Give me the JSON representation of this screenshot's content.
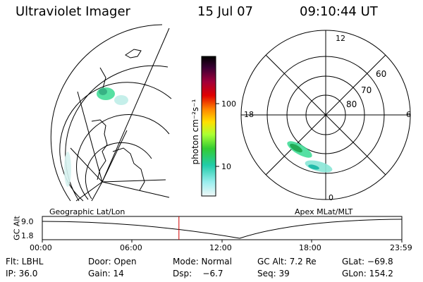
{
  "header": {
    "title": "Ultraviolet Imager",
    "date": "15 Jul 07",
    "time": "09:10:44 UT"
  },
  "colorbar": {
    "unit_label": "photon cm⁻²s⁻¹",
    "ticks": [
      "100",
      "10"
    ],
    "colors": [
      "#000000",
      "#3a0033",
      "#7a0040",
      "#b80020",
      "#e00000",
      "#ff5500",
      "#ff9900",
      "#ffdd00",
      "#e6ff33",
      "#99ff33",
      "#44dd33",
      "#22cc99",
      "#33ddcc",
      "#88eeee",
      "#d0f0f0",
      "#ffffff"
    ]
  },
  "left_map": {
    "label": "Geographic Lat/Lon"
  },
  "right_map": {
    "label": "Apex MLat/MLT",
    "lat_labels": [
      "60",
      "70",
      "80"
    ],
    "mlt_labels": {
      "top": "12",
      "left": "18",
      "right": "6",
      "bottom": "0"
    }
  },
  "altitude_plot": {
    "ylabel": "GC Alt",
    "y_ticks": [
      "9.0",
      "1.8"
    ],
    "x_ticks": [
      "00:00",
      "06:00",
      "12:00",
      "18:00",
      "23:59"
    ],
    "current_time_fraction": 0.38,
    "marker_color": "#d00000"
  },
  "info": {
    "row1": {
      "filter": "Flt: LBHL",
      "door": "Door: Open",
      "mode": "Mode: Normal",
      "gc_alt": "GC Alt: 7.2 Re",
      "glat": "GLat: −69.8"
    },
    "row2": {
      "ip": "IP: 36.0",
      "gain": "Gain: 14",
      "dsp": "Dsp:    −6.7",
      "seq": "Seq: 39",
      "glon": "GLon: 154.2"
    }
  }
}
